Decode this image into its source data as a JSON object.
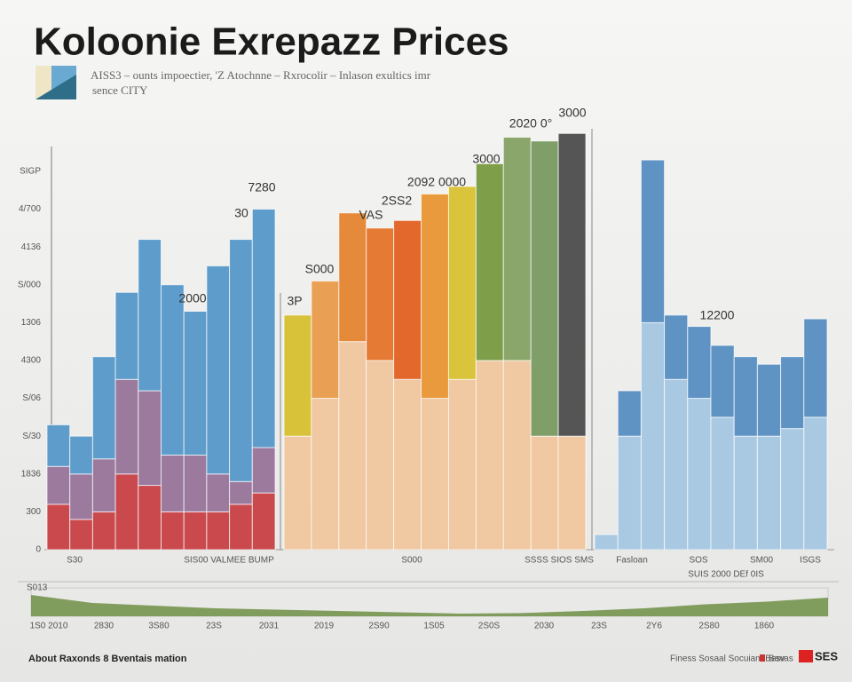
{
  "chart_data": {
    "type": "bar",
    "stacked": true,
    "title": "Koloonie Exrepazz Prices",
    "subtitle": [
      "AISS3 – ounts impoectier, 'Z Atochnne – Rxrocolir – Inlason exultics imr",
      "sence CITY"
    ],
    "y_labels": [
      "0",
      "300",
      "1836",
      "S/30",
      "S/06",
      "4300",
      "1306",
      "S/000",
      "4136",
      "4/700",
      "SIGP"
    ],
    "ylim": [
      0,
      11.5
    ],
    "panels": [
      {
        "series": [
          {
            "color": "#c9494d",
            "values": [
              1.2,
              0.8,
              1.0,
              2.0,
              1.7,
              1.0,
              1.0,
              1.0,
              1.2,
              1.5
            ]
          },
          {
            "color": "#9c7a9e",
            "values": [
              1.0,
              1.2,
              1.4,
              2.5,
              2.5,
              1.5,
              1.5,
              1.0,
              0.6,
              1.2
            ]
          },
          {
            "color": "#5d9ccb",
            "values": [
              1.1,
              1.0,
              2.7,
              2.3,
              4.0,
              4.5,
              3.8,
              5.5,
              6.4,
              6.3
            ]
          }
        ]
      },
      {
        "series": [
          {
            "color": "#f0c8a2",
            "values": [
              3.0,
              4.0,
              5.5,
              5.0,
              4.5,
              4.0,
              4.5,
              5.0,
              5.0,
              3.0,
              3.0
            ]
          },
          {
            "colors": [
              "#d8c23a",
              "#e9a055",
              "#e58a3a",
              "#e57a35",
              "#e2682c",
              "#e89a3c",
              "#d9c43c",
              "#7e9e4a",
              "#8aa66a",
              "#7f9e68",
              "#555555"
            ],
            "values": [
              3.2,
              3.1,
              3.4,
              3.5,
              4.2,
              5.4,
              5.1,
              5.2,
              5.9,
              7.8,
              8.0
            ]
          }
        ]
      },
      {
        "series": [
          {
            "color": "#a9c9e3",
            "values": [
              0.4,
              3.0,
              6.0,
              4.5,
              4.0,
              3.5,
              3.0,
              3.0,
              3.2,
              3.5
            ]
          },
          {
            "color": "#5f93c4",
            "values": [
              0,
              1.2,
              4.3,
              1.7,
              1.9,
              1.9,
              2.1,
              1.9,
              1.9,
              2.6
            ]
          }
        ]
      }
    ],
    "annotations": [
      "7280",
      "30",
      "2000",
      "3P",
      "S000",
      "VAS",
      "2SS2",
      "2092 0000",
      "3000",
      "2020 0°",
      "3000",
      "12200"
    ],
    "x_labels": [
      "S30",
      "SIS00 VALMEE BUMP",
      "S000",
      "SSSS SIOS SMS",
      "Fasloan",
      "SOS",
      "SM00",
      "ISGS",
      "SUIS 2000 DEf 0IS"
    ],
    "overview": {
      "type": "area",
      "label": "S013",
      "color": "#6f8f45",
      "ylim": [
        0,
        1
      ],
      "values": [
        0.8,
        0.5,
        0.4,
        0.3,
        0.25,
        0.2,
        0.15,
        0.1,
        0.12,
        0.2,
        0.3,
        0.45,
        0.55,
        0.7
      ],
      "x_labels": [
        "1S0 2010",
        "2830",
        "3S80",
        "23S",
        "2031",
        "2019",
        "2S90",
        "1S05",
        "2S0S",
        "2030",
        "23S",
        "2Y6",
        "2S80",
        "1860"
      ]
    }
  },
  "footer": {
    "left": "About Raxonds 8 Bventais mation",
    "right": [
      "Finess Sosaal Socuiam Besv",
      "Bavas",
      "SES"
    ]
  }
}
